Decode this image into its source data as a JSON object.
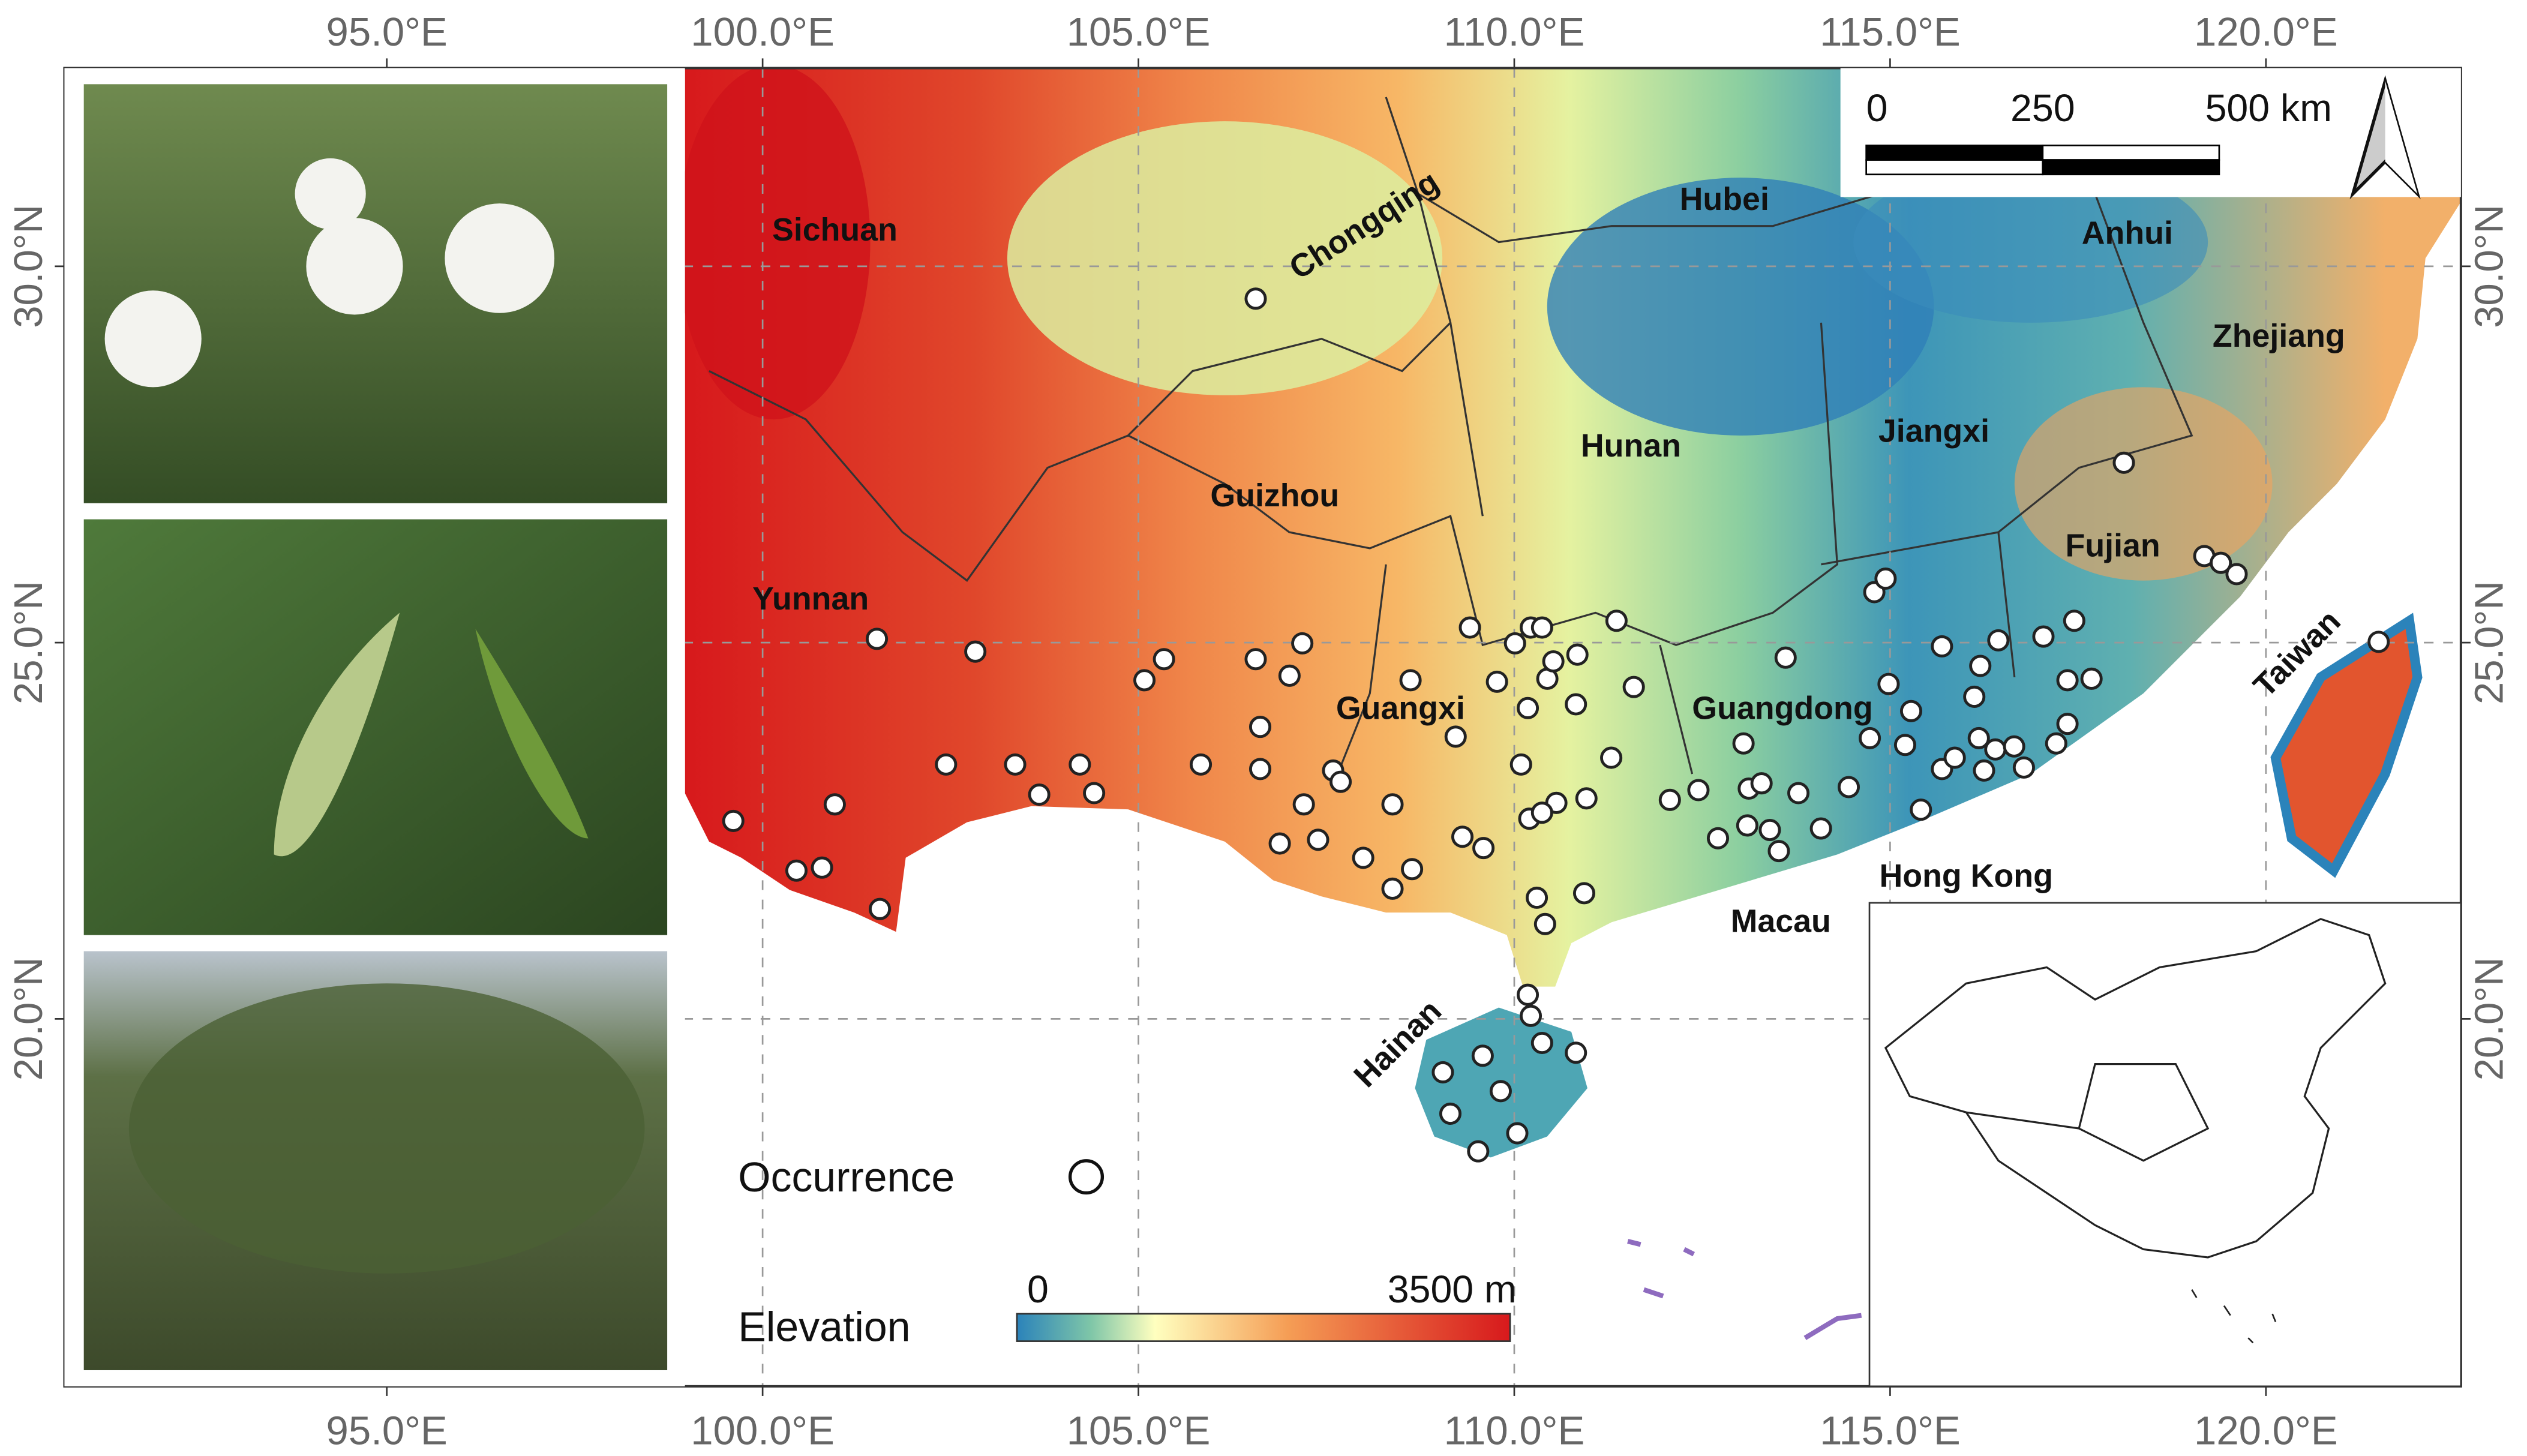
{
  "map": {
    "lon_ticks": [
      {
        "value": 95,
        "label": "95.0°E"
      },
      {
        "value": 100,
        "label": "100.0°E"
      },
      {
        "value": 105,
        "label": "105.0°E"
      },
      {
        "value": 110,
        "label": "110.0°E"
      },
      {
        "value": 115,
        "label": "115.0°E"
      },
      {
        "value": 120,
        "label": "120.0°E"
      }
    ],
    "lat_ticks": [
      {
        "value": 20,
        "label": "20.0°N"
      },
      {
        "value": 25,
        "label": "25.0°N"
      },
      {
        "value": 30,
        "label": "30.0°N"
      }
    ],
    "regions": [
      "Sichuan",
      "Chongqing",
      "Hubei",
      "Anhui",
      "Zhejiang",
      "Guizhou",
      "Hunan",
      "Jiangxi",
      "Fujian",
      "Yunnan",
      "Guangxi",
      "Guangdong",
      "Taiwan",
      "Hong Kong",
      "Macau",
      "Hainan"
    ],
    "points": [
      {
        "lon": 106.56,
        "lat": 29.57
      },
      {
        "lon": 101.52,
        "lat": 25.05
      },
      {
        "lon": 102.83,
        "lat": 24.88
      },
      {
        "lon": 99.61,
        "lat": 22.63
      },
      {
        "lon": 100.96,
        "lat": 22.85
      },
      {
        "lon": 100.45,
        "lat": 21.97
      },
      {
        "lon": 100.79,
        "lat": 22.01
      },
      {
        "lon": 101.56,
        "lat": 21.46
      },
      {
        "lon": 102.44,
        "lat": 23.38
      },
      {
        "lon": 103.36,
        "lat": 23.38
      },
      {
        "lon": 103.68,
        "lat": 22.98
      },
      {
        "lon": 104.22,
        "lat": 23.38
      },
      {
        "lon": 104.41,
        "lat": 23.0
      },
      {
        "lon": 105.08,
        "lat": 24.5
      },
      {
        "lon": 105.34,
        "lat": 24.78
      },
      {
        "lon": 105.83,
        "lat": 23.38
      },
      {
        "lon": 106.56,
        "lat": 24.78
      },
      {
        "lon": 107.18,
        "lat": 24.99
      },
      {
        "lon": 107.01,
        "lat": 24.56
      },
      {
        "lon": 106.62,
        "lat": 23.88
      },
      {
        "lon": 106.62,
        "lat": 23.32
      },
      {
        "lon": 107.59,
        "lat": 23.3
      },
      {
        "lon": 107.69,
        "lat": 23.15
      },
      {
        "lon": 107.2,
        "lat": 22.85
      },
      {
        "lon": 107.39,
        "lat": 22.38
      },
      {
        "lon": 106.88,
        "lat": 22.33
      },
      {
        "lon": 107.99,
        "lat": 22.14
      },
      {
        "lon": 108.38,
        "lat": 22.85
      },
      {
        "lon": 108.64,
        "lat": 21.99
      },
      {
        "lon": 108.38,
        "lat": 21.73
      },
      {
        "lon": 108.62,
        "lat": 24.5
      },
      {
        "lon": 109.22,
        "lat": 23.75
      },
      {
        "lon": 109.41,
        "lat": 25.2
      },
      {
        "lon": 110.01,
        "lat": 24.99
      },
      {
        "lon": 110.22,
        "lat": 25.2
      },
      {
        "lon": 110.37,
        "lat": 25.2
      },
      {
        "lon": 109.77,
        "lat": 24.48
      },
      {
        "lon": 110.18,
        "lat": 24.13
      },
      {
        "lon": 110.44,
        "lat": 24.52
      },
      {
        "lon": 110.52,
        "lat": 24.75
      },
      {
        "lon": 110.84,
        "lat": 24.84
      },
      {
        "lon": 110.82,
        "lat": 24.18
      },
      {
        "lon": 111.36,
        "lat": 25.29
      },
      {
        "lon": 110.09,
        "lat": 23.38
      },
      {
        "lon": 110.56,
        "lat": 22.87
      },
      {
        "lon": 110.2,
        "lat": 22.66
      },
      {
        "lon": 110.37,
        "lat": 22.74
      },
      {
        "lon": 110.96,
        "lat": 22.93
      },
      {
        "lon": 109.31,
        "lat": 22.42
      },
      {
        "lon": 109.59,
        "lat": 22.27
      },
      {
        "lon": 110.3,
        "lat": 21.61
      },
      {
        "lon": 110.41,
        "lat": 21.26
      },
      {
        "lon": 110.93,
        "lat": 21.67
      },
      {
        "lon": 110.18,
        "lat": 20.32
      },
      {
        "lon": 110.22,
        "lat": 20.04
      },
      {
        "lon": 110.37,
        "lat": 19.68
      },
      {
        "lon": 110.82,
        "lat": 19.55
      },
      {
        "lon": 109.58,
        "lat": 19.51
      },
      {
        "lon": 109.05,
        "lat": 19.29
      },
      {
        "lon": 109.82,
        "lat": 19.04
      },
      {
        "lon": 109.15,
        "lat": 18.74
      },
      {
        "lon": 110.04,
        "lat": 18.48
      },
      {
        "lon": 109.52,
        "lat": 18.24
      },
      {
        "lon": 111.29,
        "lat": 23.47
      },
      {
        "lon": 111.59,
        "lat": 24.41
      },
      {
        "lon": 112.07,
        "lat": 22.91
      },
      {
        "lon": 112.45,
        "lat": 23.04
      },
      {
        "lon": 112.71,
        "lat": 22.4
      },
      {
        "lon": 113.05,
        "lat": 23.66
      },
      {
        "lon": 113.12,
        "lat": 23.06
      },
      {
        "lon": 113.29,
        "lat": 23.13
      },
      {
        "lon": 113.1,
        "lat": 22.57
      },
      {
        "lon": 113.4,
        "lat": 22.51
      },
      {
        "lon": 113.78,
        "lat": 23.0
      },
      {
        "lon": 113.61,
        "lat": 24.8
      },
      {
        "lon": 114.45,
        "lat": 23.08
      },
      {
        "lon": 114.08,
        "lat": 22.53
      },
      {
        "lon": 113.52,
        "lat": 22.23
      },
      {
        "lon": 114.79,
        "lat": 25.67
      },
      {
        "lon": 114.94,
        "lat": 25.85
      },
      {
        "lon": 114.98,
        "lat": 24.45
      },
      {
        "lon": 115.28,
        "lat": 24.09
      },
      {
        "lon": 114.73,
        "lat": 23.73
      },
      {
        "lon": 115.2,
        "lat": 23.64
      },
      {
        "lon": 115.41,
        "lat": 22.78
      },
      {
        "lon": 115.69,
        "lat": 24.95
      },
      {
        "lon": 115.69,
        "lat": 23.32
      },
      {
        "lon": 115.86,
        "lat": 23.47
      },
      {
        "lon": 116.12,
        "lat": 24.28
      },
      {
        "lon": 116.2,
        "lat": 24.69
      },
      {
        "lon": 116.44,
        "lat": 25.03
      },
      {
        "lon": 116.18,
        "lat": 23.73
      },
      {
        "lon": 116.4,
        "lat": 23.58
      },
      {
        "lon": 116.65,
        "lat": 23.62
      },
      {
        "lon": 116.25,
        "lat": 23.3
      },
      {
        "lon": 116.78,
        "lat": 23.34
      },
      {
        "lon": 117.04,
        "lat": 25.08
      },
      {
        "lon": 117.45,
        "lat": 25.29
      },
      {
        "lon": 117.36,
        "lat": 24.5
      },
      {
        "lon": 117.68,
        "lat": 24.52
      },
      {
        "lon": 117.36,
        "lat": 23.92
      },
      {
        "lon": 117.21,
        "lat": 23.66
      },
      {
        "lon": 118.11,
        "lat": 27.39
      },
      {
        "lon": 119.18,
        "lat": 26.15
      },
      {
        "lon": 119.4,
        "lat": 26.06
      },
      {
        "lon": 119.61,
        "lat": 25.91
      },
      {
        "lon": 121.5,
        "lat": 25.01
      }
    ]
  },
  "scale_bar": {
    "ticks": [
      0,
      250,
      {
        "value": 500,
        "label": "500 km"
      }
    ]
  },
  "legend": {
    "occurrence": "Occurrence",
    "elevation": "Elevation",
    "elevation_min": 0,
    "elevation_max": {
      "value": 3500,
      "label": "3500 m"
    }
  }
}
